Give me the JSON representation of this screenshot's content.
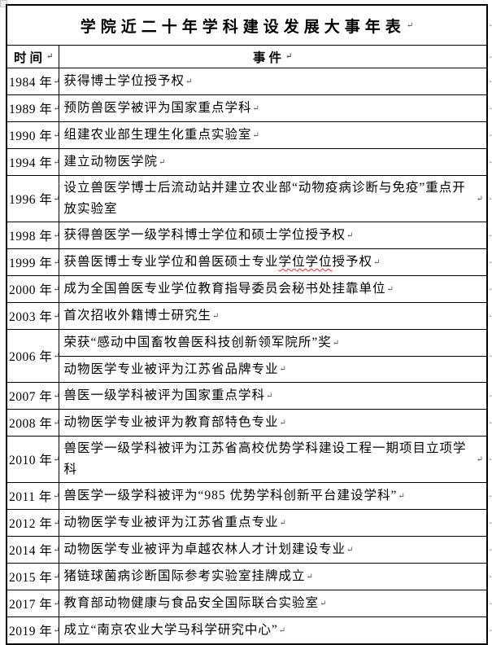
{
  "title": "学院近二十年学科建设发展大事年表",
  "columns": {
    "time": "时间",
    "event": "事件"
  },
  "paragraph_mark": "↵",
  "colors": {
    "border": "#000000",
    "text": "#000000",
    "spellcheck_underline": "#e03131",
    "paragraph_mark": "#555555"
  },
  "rows": [
    {
      "year": "1984 年",
      "events": [
        "获得博士学位授予权"
      ]
    },
    {
      "year": "1989 年",
      "events": [
        "预防兽医学被评为国家重点学科"
      ]
    },
    {
      "year": "1990 年",
      "events": [
        "组建农业部生理生化重点实验室"
      ]
    },
    {
      "year": "1994 年",
      "events": [
        "建立动物医学院"
      ]
    },
    {
      "year": "1996 年",
      "events": [
        "设立兽医学博士后流动站并建立农业部“动物疫病诊断与免疫”重点开放实验室"
      ]
    },
    {
      "year": "1998 年",
      "events": [
        "获得兽医学一级学科博士学位和硕士学位授予权"
      ]
    },
    {
      "year": "1999 年",
      "events": [
        "获兽医博士专业学位和兽医硕士专业学位学位授予权"
      ],
      "spellcheck_segment": {
        "pre": "获兽医博士专业学位和兽医硕士专业",
        "marked": "学位学位",
        "post": "授予权"
      }
    },
    {
      "year": "2000 年",
      "events": [
        "成为全国兽医专业学位教育指导委员会秘书处挂靠单位"
      ]
    },
    {
      "year": "2003 年",
      "events": [
        "首次招收外籍博士研究生"
      ]
    },
    {
      "year": "2006 年",
      "events": [
        "荣获“感动中国畜牧兽医科技创新领军院所”奖",
        "动物医学专业被评为江苏省品牌专业"
      ]
    },
    {
      "year": "2007 年",
      "events": [
        "兽医一级学科被评为国家重点学科"
      ]
    },
    {
      "year": "2008 年",
      "events": [
        "动物医学专业被评为教育部特色专业"
      ]
    },
    {
      "year": "2010 年",
      "events": [
        "兽医学一级学科被评为江苏省高校优势学科建设工程一期项目立项学科"
      ]
    },
    {
      "year": "2011 年",
      "events": [
        "兽医学一级学科被评为“985 优势学科创新平台建设学科”"
      ]
    },
    {
      "year": "2012 年",
      "events": [
        "动物医学专业被评为江苏省重点专业"
      ]
    },
    {
      "year": "2014 年",
      "events": [
        "动物医学专业被评为卓越农林人才计划建设专业"
      ]
    },
    {
      "year": "2015 年",
      "events": [
        "猪链球菌病诊断国际参考实验室挂牌成立"
      ]
    },
    {
      "year": "2017 年",
      "events": [
        "教育部动物健康与食品安全国际联合实验室"
      ]
    },
    {
      "year": "2019 年",
      "events": [
        "成立“南京农业大学马科学研究中心”"
      ]
    }
  ]
}
